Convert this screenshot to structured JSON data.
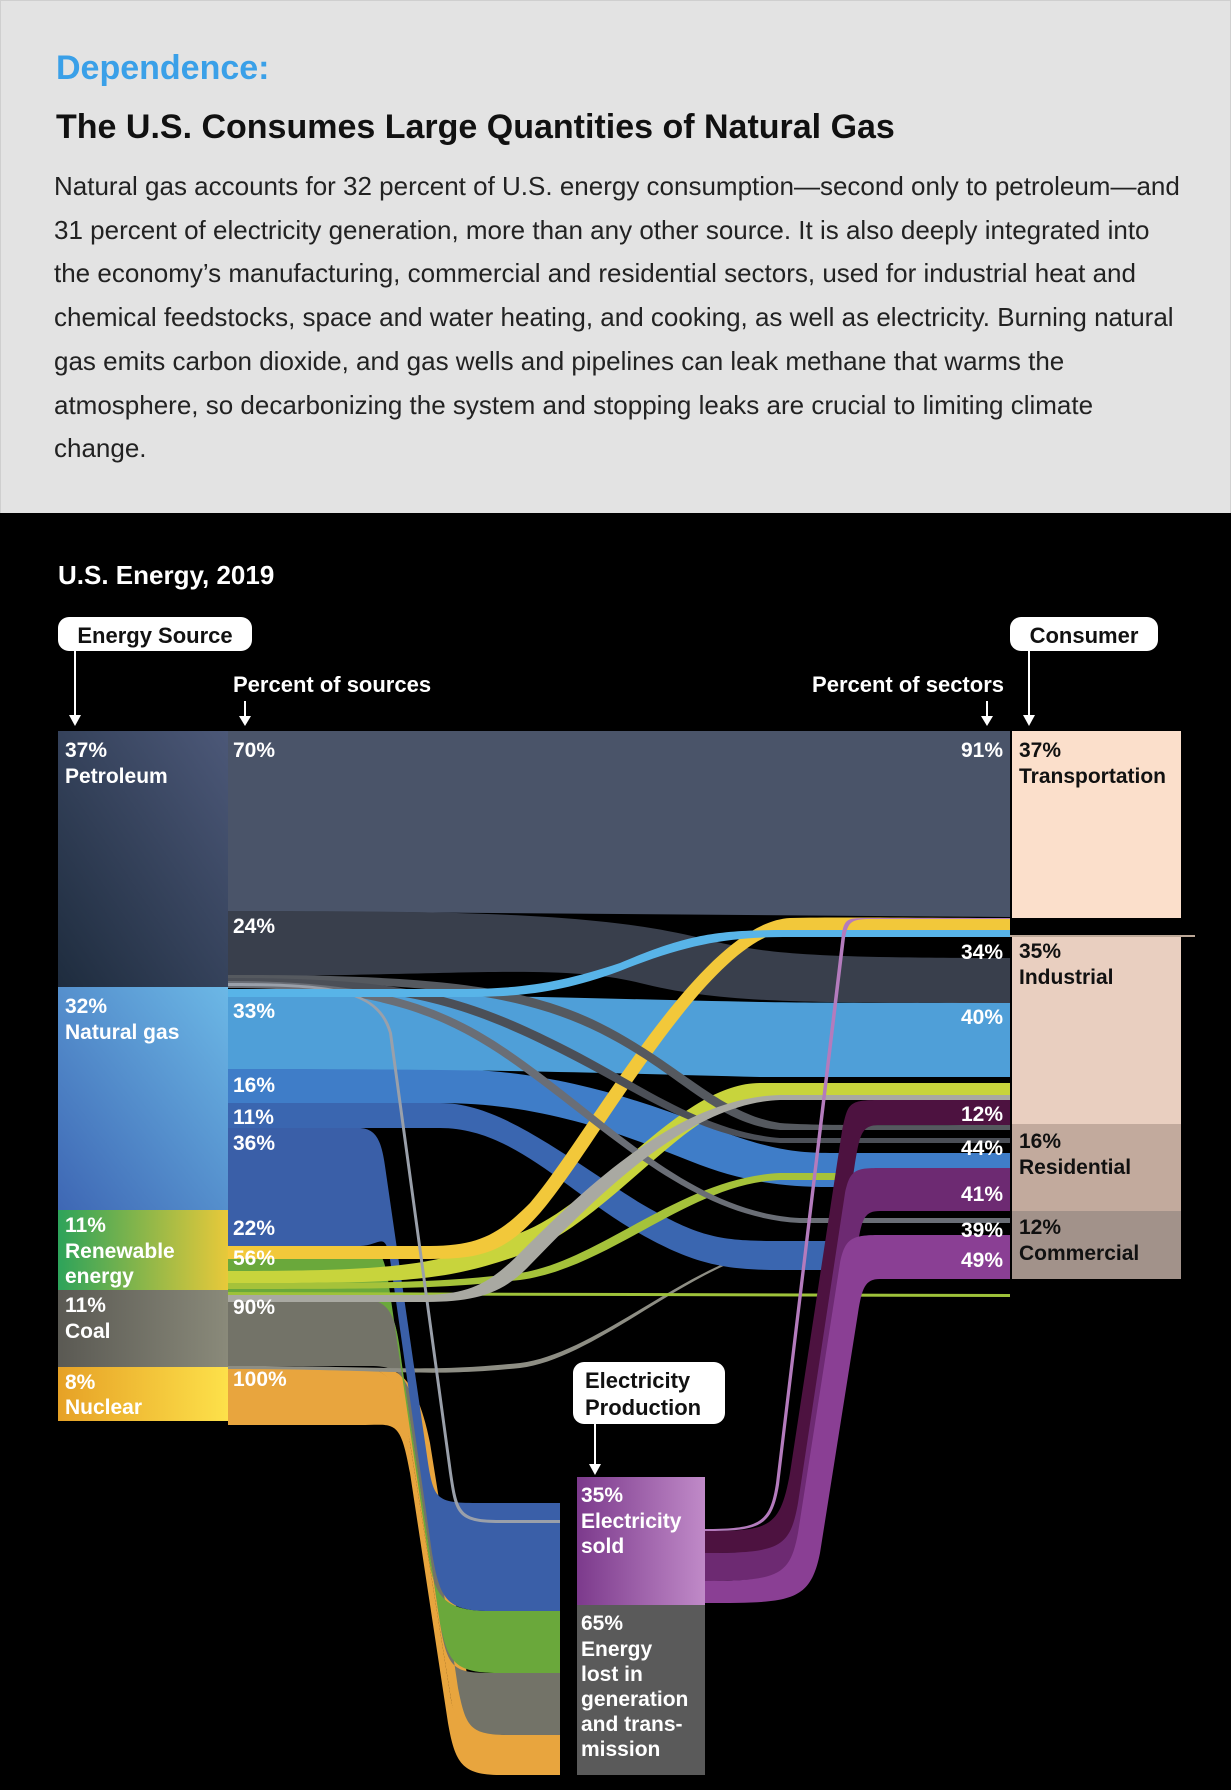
{
  "header": {
    "kicker": "Dependence:",
    "title": "The U.S. Consumes Large Quantities of Natural Gas",
    "intro": "Natural gas accounts for 32 percent of U.S. energy consumption—second only to petroleum—and 31 percent of electricity generation, more than any other source. It is also deeply integrated into the economy’s manufacturing, commercial and residential sectors, used for industrial heat and chemical feedstocks, space and water heating, and cooking, as well as electricity. Burning natural gas emits carbon dioxide, and gas wells and pipelines can leak methane that warms the atmosphere, so decarbonizing the system and stopping leaks are crucial to limiting climate change."
  },
  "chart_data": {
    "type": "sankey",
    "title": "U.S. Energy, 2019",
    "column_labels": {
      "source": "Energy Source",
      "consumer": "Consumer",
      "pct_sources": "Percent of sources",
      "pct_sectors": "Percent of sectors",
      "electricity": "Electricity Production"
    },
    "sources": [
      {
        "id": "petroleum",
        "pct": "37%",
        "name": "Petroleum",
        "value": 37,
        "color": "#33465f",
        "flow_labels": [
          "70%",
          "24%"
        ]
      },
      {
        "id": "gas",
        "pct": "32%",
        "name": "Natural gas",
        "value": 32,
        "color": "#4f8fd6",
        "flow_labels": [
          "33%",
          "16%",
          "11%",
          "36%"
        ]
      },
      {
        "id": "renewable",
        "pct": "11%",
        "name": "Renewable energy",
        "value": 11,
        "color": "#3bb66c",
        "flow_labels": [
          "22%",
          "56%"
        ]
      },
      {
        "id": "coal",
        "pct": "11%",
        "name": "Coal",
        "value": 11,
        "color": "#67665b",
        "flow_labels": [
          "90%"
        ]
      },
      {
        "id": "nuclear",
        "pct": "8%",
        "name": "Nuclear",
        "value": 8,
        "color": "#e3a22a",
        "flow_labels": [
          "100%"
        ]
      }
    ],
    "consumers": [
      {
        "id": "transportation",
        "pct": "37%",
        "name": "Transportation",
        "value": 37,
        "color": "#fbdfcb",
        "sector_labels": [
          "91%"
        ]
      },
      {
        "id": "industrial",
        "pct": "35%",
        "name": "Industrial",
        "value": 35,
        "color": "#e9cfc0",
        "sector_labels": [
          "34%",
          "40%",
          "12%"
        ]
      },
      {
        "id": "residential",
        "pct": "16%",
        "name": "Residential",
        "value": 16,
        "color": "#c2aa9d",
        "sector_labels": [
          "44%",
          "41%"
        ]
      },
      {
        "id": "commercial",
        "pct": "12%",
        "name": "Commercial",
        "value": 12,
        "color": "#a2928a",
        "sector_labels": [
          "39%",
          "49%"
        ]
      }
    ],
    "electricity": {
      "sold": {
        "pct": "35%",
        "name": "Electricity sold",
        "value": 35,
        "color": "#8a3f94"
      },
      "lost": {
        "pct": "65%",
        "name": "Energy lost in generation and transmission",
        "value": 65,
        "color": "#5a5a5a"
      }
    },
    "flows": [
      {
        "from": "petroleum",
        "to": "transportation",
        "label": "70%",
        "color": "#4a5469"
      },
      {
        "from": "petroleum",
        "to": "industrial",
        "label": "24%",
        "color": "#393f4c"
      },
      {
        "from": "gas",
        "to": "industrial",
        "label": "33%",
        "color": "#4f9fd8"
      },
      {
        "from": "gas",
        "to": "residential",
        "label": "16%",
        "color": "#3f7dc8"
      },
      {
        "from": "gas",
        "to": "commercial",
        "label": "11%",
        "color": "#3a66b0"
      },
      {
        "from": "gas",
        "to": "electricity",
        "label": "36%",
        "color": "#3a5fa8"
      },
      {
        "from": "renewable",
        "to": "electricity",
        "label": "56%",
        "color": "#6aa83b"
      },
      {
        "from": "coal",
        "to": "electricity",
        "label": "90%",
        "color": "#737368"
      },
      {
        "from": "nuclear",
        "to": "electricity",
        "label": "100%",
        "color": "#e8a53e"
      },
      {
        "from": "electricity",
        "to": "industrial",
        "label": "12%",
        "color": "#4d1240"
      },
      {
        "from": "electricity",
        "to": "residential",
        "label": "41%",
        "color": "#6d2a72"
      },
      {
        "from": "electricity",
        "to": "commercial",
        "label": "49%",
        "color": "#8a3f94"
      }
    ]
  }
}
